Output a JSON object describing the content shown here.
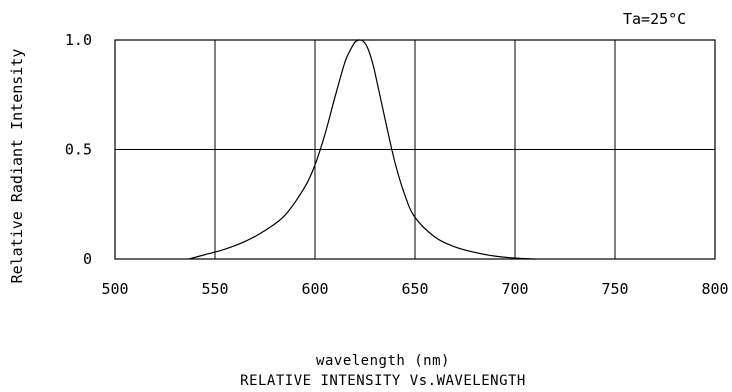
{
  "chart_data": {
    "type": "line",
    "title": "RELATIVE INTENSITY Vs.WAVELENGTH",
    "annotation": "Ta=25°C",
    "xlabel": "wavelength (nm)",
    "ylabel": "Relative Radiant Intensity",
    "xlim": [
      500,
      800
    ],
    "ylim": [
      0,
      1.0
    ],
    "x_ticks": [
      "500",
      "550",
      "600",
      "650",
      "700",
      "750",
      "800"
    ],
    "x_tick_values": [
      500,
      550,
      600,
      650,
      700,
      750,
      800
    ],
    "y_ticks": [
      "0",
      "0.5",
      "1.0"
    ],
    "y_tick_values": [
      0,
      0.5,
      1.0
    ],
    "grid": true,
    "series": [
      {
        "x": [
          537,
          545,
          555,
          565,
          575,
          585,
          595,
          600,
          605,
          610,
          615,
          618,
          620,
          622,
          624,
          626,
          628,
          630,
          635,
          640,
          645,
          650,
          660,
          670,
          680,
          690,
          700,
          710
        ],
        "y": [
          0.0,
          0.02,
          0.045,
          0.08,
          0.13,
          0.2,
          0.33,
          0.43,
          0.57,
          0.74,
          0.9,
          0.96,
          0.99,
          1.0,
          0.995,
          0.97,
          0.92,
          0.85,
          0.64,
          0.44,
          0.29,
          0.19,
          0.1,
          0.055,
          0.03,
          0.013,
          0.004,
          0.0
        ],
        "color": "#000000"
      }
    ]
  }
}
